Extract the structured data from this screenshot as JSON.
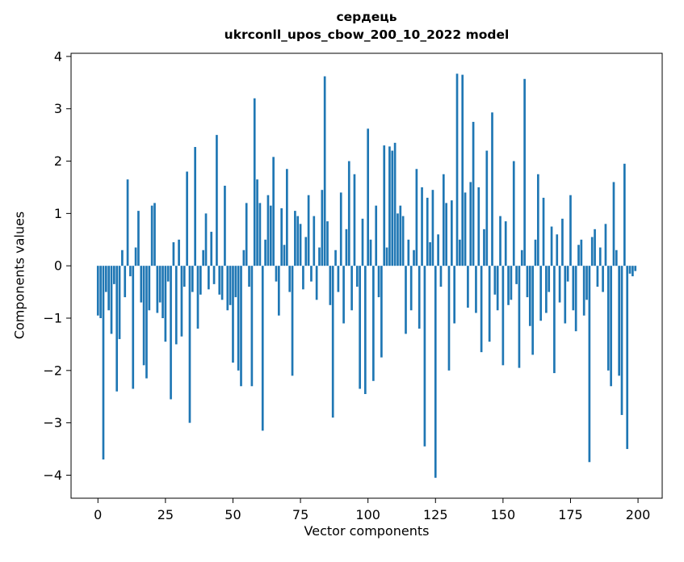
{
  "figure": {
    "title_line1": "сердець",
    "title_line2": "ukrconll_upos_cbow_200_10_2022 model",
    "xlabel": "Vector components",
    "ylabel": "Components values"
  },
  "chart_data": {
    "type": "bar",
    "title": "сердець — ukrconll_upos_cbow_200_10_2022 model",
    "xlabel": "Vector components",
    "ylabel": "Components values",
    "bar_color": "#1f77b4",
    "xlim": [
      -9.95,
      208.95
    ],
    "ylim": [
      -4.44,
      4.06
    ],
    "x_ticks": [
      0,
      25,
      50,
      75,
      100,
      125,
      150,
      175,
      200
    ],
    "y_ticks": [
      -4,
      -3,
      -2,
      -1,
      0,
      1,
      2,
      3,
      4
    ],
    "grid": false,
    "legend": "none",
    "values": [
      -0.95,
      -1.0,
      -3.7,
      -0.5,
      -0.85,
      -1.3,
      -0.35,
      -2.4,
      -1.4,
      0.3,
      -0.6,
      1.65,
      -0.2,
      -2.35,
      0.35,
      1.05,
      -0.7,
      -1.9,
      -2.15,
      -0.85,
      1.15,
      1.2,
      -0.9,
      -0.7,
      -1.0,
      -1.45,
      -0.3,
      -2.55,
      0.45,
      -1.5,
      0.5,
      -1.35,
      -0.4,
      1.8,
      -3.0,
      -0.5,
      2.27,
      -1.2,
      -0.55,
      0.3,
      1.0,
      -0.45,
      0.65,
      -0.35,
      2.5,
      -0.55,
      -0.65,
      1.53,
      -0.85,
      -0.75,
      -1.85,
      -0.6,
      -2.0,
      -2.3,
      0.3,
      1.2,
      -0.4,
      -2.3,
      3.2,
      1.65,
      1.2,
      -3.15,
      0.5,
      1.35,
      1.15,
      2.08,
      -0.3,
      -0.95,
      1.1,
      0.4,
      1.85,
      -0.5,
      -2.1,
      1.05,
      0.95,
      0.8,
      -0.45,
      0.55,
      1.35,
      -0.3,
      0.95,
      -0.65,
      0.35,
      1.45,
      3.62,
      0.85,
      -0.75,
      -2.9,
      0.3,
      -0.5,
      1.4,
      -1.1,
      0.7,
      2.0,
      -0.85,
      1.75,
      -0.4,
      -2.35,
      0.9,
      -2.45,
      2.62,
      0.5,
      -2.2,
      1.15,
      -0.6,
      -1.75,
      2.3,
      0.35,
      2.28,
      2.2,
      2.35,
      1.0,
      1.15,
      0.95,
      -1.3,
      0.5,
      -0.85,
      0.3,
      1.85,
      -1.2,
      1.5,
      -3.45,
      1.3,
      0.45,
      1.45,
      -4.05,
      0.6,
      -0.4,
      1.75,
      1.2,
      -2.0,
      1.25,
      -1.1,
      3.67,
      0.5,
      3.65,
      1.4,
      -0.8,
      1.6,
      2.75,
      -0.9,
      1.5,
      -1.65,
      0.7,
      2.2,
      -1.45,
      2.93,
      -0.55,
      -0.85,
      0.95,
      -1.9,
      0.85,
      -0.75,
      -0.65,
      2.0,
      -0.35,
      -1.95,
      0.3,
      3.57,
      -0.6,
      -1.15,
      -1.7,
      0.5,
      1.75,
      -1.05,
      1.3,
      -0.9,
      -0.5,
      0.75,
      -2.05,
      0.6,
      -0.7,
      0.9,
      -1.1,
      -0.3,
      1.35,
      -0.85,
      -1.25,
      0.4,
      0.5,
      -0.95,
      -0.65,
      -3.75,
      0.55,
      0.7,
      -0.4,
      0.35,
      -0.5,
      0.8,
      -2.0,
      -2.3,
      1.6,
      0.3,
      -2.1,
      -2.85,
      1.95,
      -3.5,
      -0.15,
      -0.2,
      -0.1
    ]
  }
}
